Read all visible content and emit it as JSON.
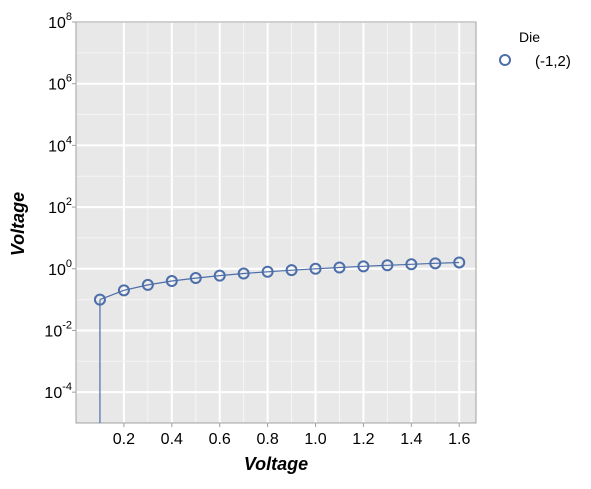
{
  "chart_data": {
    "type": "line",
    "xlabel": "Voltage",
    "ylabel": "Voltage",
    "xlim": [
      0.0,
      1.67
    ],
    "ylim": [
      1e-05,
      100000000
    ],
    "yscale": "log",
    "grid": true,
    "x_ticks": [
      0.2,
      0.4,
      0.6,
      0.8,
      1.0,
      1.2,
      1.4,
      1.6
    ],
    "x_tick_labels": [
      "0.2",
      "0.4",
      "0.6",
      "0.8",
      "1.0",
      "1.2",
      "1.4",
      "1.6"
    ],
    "y_ticks": [
      {
        "value": 0.0001,
        "base": "10",
        "exp": "-4"
      },
      {
        "value": 0.01,
        "base": "10",
        "exp": "-2"
      },
      {
        "value": 1,
        "base": "10",
        "exp": "0"
      },
      {
        "value": 100,
        "base": "10",
        "exp": "2"
      },
      {
        "value": 10000,
        "base": "10",
        "exp": "4"
      },
      {
        "value": 1000000,
        "base": "10",
        "exp": "6"
      },
      {
        "value": 100000000,
        "base": "10",
        "exp": "8"
      }
    ],
    "legend": {
      "title": "Die",
      "placement": "outside-right-top",
      "entries": [
        "(-1,2)"
      ]
    },
    "series": [
      {
        "name": "(-1,2)",
        "color": "#4c6ea9",
        "marker": "circle-open",
        "x": [
          0.1,
          0.2,
          0.3,
          0.4,
          0.5,
          0.6,
          0.7,
          0.8,
          0.9,
          1.0,
          1.1,
          1.2,
          1.3,
          1.4,
          1.5,
          1.6
        ],
        "y": [
          0.1,
          0.2,
          0.3,
          0.4,
          0.5,
          0.6,
          0.7,
          0.8,
          0.9,
          1.0,
          1.1,
          1.2,
          1.3,
          1.4,
          1.5,
          1.6
        ]
      }
    ]
  }
}
